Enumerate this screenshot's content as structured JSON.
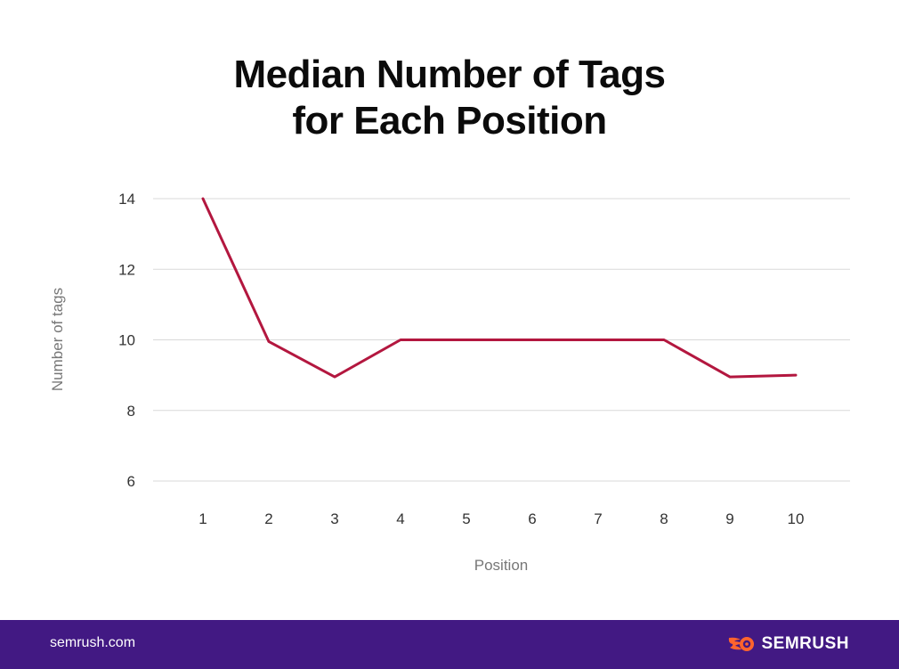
{
  "chart_data": {
    "type": "line",
    "title_lines": [
      "Median Number of Tags",
      "for Each Position"
    ],
    "xlabel": "Position",
    "ylabel": "Number of tags",
    "x": [
      1,
      2,
      3,
      4,
      5,
      6,
      7,
      8,
      9,
      10
    ],
    "series": [
      {
        "values": [
          14,
          9.95,
          8.95,
          10,
          10,
          10,
          10,
          10,
          8.95,
          9
        ],
        "color": "#b3173f"
      }
    ],
    "yticks": [
      6,
      8,
      10,
      12,
      14
    ],
    "ylim": [
      6,
      14
    ],
    "grid": true,
    "legend": "none"
  },
  "footer": {
    "url": "semrush.com",
    "brand": "SEMRUSH",
    "background": "#421983",
    "logo_icon": "semrush-flame-icon",
    "logo_color": "#ff642d"
  }
}
